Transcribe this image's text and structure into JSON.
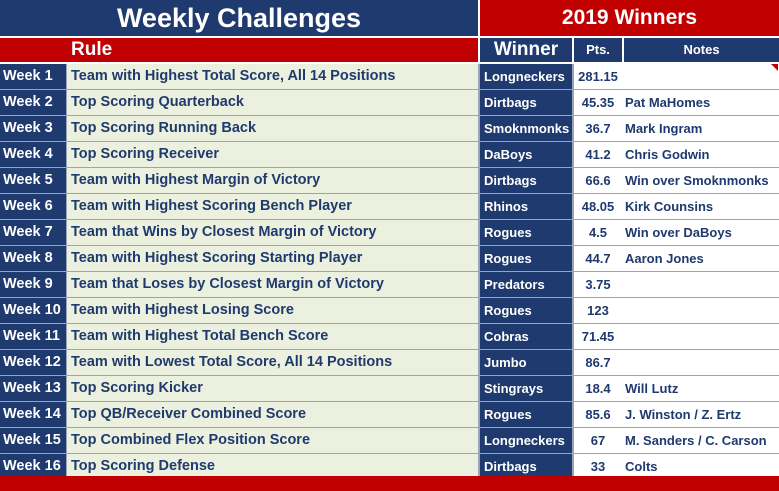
{
  "header": {
    "title": "Weekly Challenges",
    "winners_title": "2019 Winners",
    "rule_label": "Rule",
    "winner_label": "Winner",
    "pts_label": "Pts.",
    "notes_label": "Notes"
  },
  "colors": {
    "navy": "#1f3a6e",
    "red": "#c00000",
    "rule_cell_bg": "#ebf1de",
    "white": "#ffffff"
  },
  "rows": [
    {
      "week": "Week 1",
      "rule": "Team with Highest Total Score, All 14 Positions",
      "winner": "Longneckers",
      "pts": "281.15",
      "note": ""
    },
    {
      "week": "Week 2",
      "rule": "Top Scoring Quarterback",
      "winner": "Dirtbags",
      "pts": "45.35",
      "note": "Pat MaHomes"
    },
    {
      "week": "Week 3",
      "rule": "Top Scoring Running Back",
      "winner": "Smoknmonks",
      "pts": "36.7",
      "note": "Mark Ingram"
    },
    {
      "week": "Week 4",
      "rule": "Top Scoring Receiver",
      "winner": "DaBoys",
      "pts": "41.2",
      "note": "Chris Godwin"
    },
    {
      "week": "Week 5",
      "rule": "Team with Highest Margin of Victory",
      "winner": "Dirtbags",
      "pts": "66.6",
      "note": "Win over Smoknmonks"
    },
    {
      "week": "Week 6",
      "rule": "Team with Highest Scoring Bench Player",
      "winner": "Rhinos",
      "pts": "48.05",
      "note": "Kirk Counsins"
    },
    {
      "week": "Week 7",
      "rule": "Team that Wins by Closest Margin of Victory",
      "winner": "Rogues",
      "pts": "4.5",
      "note": "Win over DaBoys"
    },
    {
      "week": "Week 8",
      "rule": "Team with Highest Scoring Starting Player",
      "winner": "Rogues",
      "pts": "44.7",
      "note": "Aaron Jones"
    },
    {
      "week": "Week 9",
      "rule": "Team that Loses by Closest Margin of Victory",
      "winner": "Predators",
      "pts": "3.75",
      "note": ""
    },
    {
      "week": "Week 10",
      "rule": "Team with Highest Losing Score",
      "winner": "Rogues",
      "pts": "123",
      "note": ""
    },
    {
      "week": "Week 11",
      "rule": "Team with Highest Total Bench Score",
      "winner": "Cobras",
      "pts": "71.45",
      "note": ""
    },
    {
      "week": "Week 12",
      "rule": "Team with Lowest Total Score, All 14 Positions",
      "winner": "Jumbo",
      "pts": "86.7",
      "note": ""
    },
    {
      "week": "Week 13",
      "rule": "Top Scoring Kicker",
      "winner": "Stingrays",
      "pts": "18.4",
      "note": "Will Lutz"
    },
    {
      "week": "Week 14",
      "rule": "Top QB/Receiver Combined Score",
      "winner": "Rogues",
      "pts": "85.6",
      "note": "J. Winston / Z. Ertz"
    },
    {
      "week": "Week 15",
      "rule": "Top Combined Flex Position Score",
      "winner": "Longneckers",
      "pts": "67",
      "note": "M. Sanders / C. Carson"
    },
    {
      "week": "Week 16",
      "rule": "Top Scoring Defense",
      "winner": "Dirtbags",
      "pts": "33",
      "note": "Colts"
    }
  ]
}
